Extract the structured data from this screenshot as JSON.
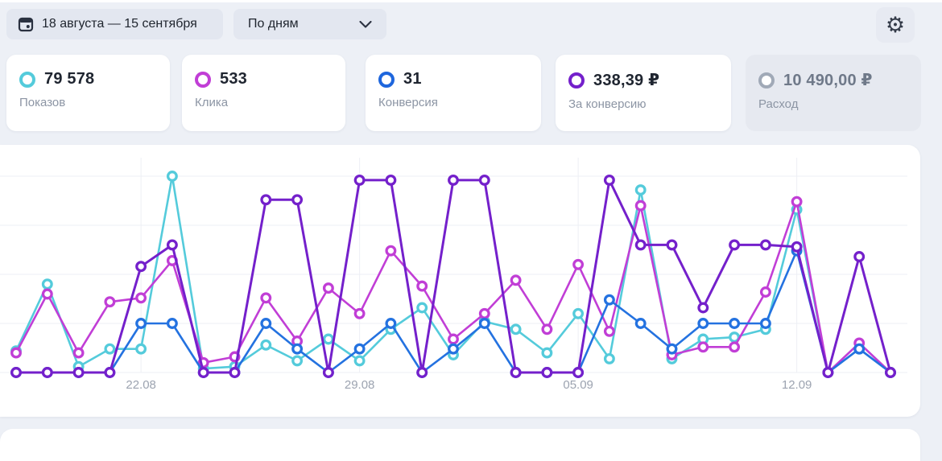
{
  "toolbar": {
    "date_range_label": "18 августа — 15 сентября",
    "granularity_value": "По дням",
    "calendar_icon": "calendar-icon",
    "chevron_icon": "chevron-down-icon",
    "settings_icon": "gear-icon"
  },
  "metrics": [
    {
      "key": "impressions",
      "value": "79 578",
      "label": "Показов",
      "color": "#54CBDB",
      "state": "active"
    },
    {
      "key": "clicks",
      "value": "533",
      "label": "Клика",
      "color": "#C13ED6",
      "state": "active"
    },
    {
      "key": "conversions",
      "value": "31",
      "label": "Конверсия",
      "color": "#1E66DD",
      "state": "active"
    },
    {
      "key": "cost_per_conversion",
      "value": "338,39 ₽",
      "label": "За конверсию",
      "color": "#7420CB",
      "state": "active"
    },
    {
      "key": "spend",
      "value": "10 490,00 ₽",
      "label": "Расход",
      "color": "#A0A9B7",
      "state": "disabled"
    }
  ],
  "chart_data": {
    "type": "line",
    "x": [
      "18.08",
      "19.08",
      "20.08",
      "21.08",
      "22.08",
      "23.08",
      "24.08",
      "25.08",
      "26.08",
      "27.08",
      "28.08",
      "29.08",
      "30.08",
      "31.08",
      "01.09",
      "02.09",
      "03.09",
      "04.09",
      "05.09",
      "06.09",
      "07.09",
      "08.09",
      "09.09",
      "10.09",
      "11.09",
      "12.09",
      "13.09",
      "14.09",
      "15.09"
    ],
    "x_tick_labels": [
      "22.08",
      "29.08",
      "05.09",
      "12.09"
    ],
    "ylim": [
      0,
      100
    ],
    "y_axis": "hidden — each series normalized to percent of plot height",
    "grid": true,
    "legend": "metric cards above act as legend",
    "series": [
      {
        "key": "impressions",
        "name": "Показы",
        "color": "#54CBDB",
        "values": [
          11,
          45,
          3,
          12,
          12,
          100,
          2,
          3,
          14,
          6,
          17,
          6,
          22,
          33,
          9,
          26,
          22,
          10,
          30,
          7,
          93,
          7,
          17,
          18,
          22,
          83,
          0,
          12,
          0
        ]
      },
      {
        "key": "clicks",
        "name": "Клики",
        "color": "#C13ED6",
        "values": [
          10,
          40,
          10,
          36,
          38,
          57,
          5,
          8,
          38,
          16,
          43,
          30,
          62,
          44,
          17,
          30,
          47,
          22,
          55,
          21,
          85,
          9,
          13,
          13,
          41,
          87,
          0,
          15,
          0
        ]
      },
      {
        "key": "conversions",
        "name": "Конверсии",
        "color": "#2472E0",
        "values": [
          0,
          0,
          0,
          0,
          25,
          25,
          0,
          0,
          25,
          12,
          0,
          12,
          25,
          0,
          12,
          25,
          0,
          0,
          0,
          37,
          25,
          12,
          25,
          25,
          25,
          62,
          0,
          12,
          0
        ],
        "counts": [
          0,
          0,
          0,
          0,
          2,
          2,
          0,
          0,
          2,
          1,
          0,
          1,
          2,
          0,
          1,
          2,
          0,
          0,
          0,
          3,
          2,
          1,
          2,
          2,
          2,
          5,
          0,
          1,
          0
        ]
      },
      {
        "key": "cost_per_conversion",
        "name": "За конверсию",
        "color": "#7420CB",
        "values": [
          0,
          0,
          0,
          0,
          54,
          65,
          0,
          0,
          88,
          88,
          0,
          98,
          98,
          0,
          98,
          98,
          0,
          0,
          0,
          98,
          65,
          65,
          33,
          65,
          65,
          64,
          0,
          59,
          0
        ]
      }
    ]
  },
  "colors": {
    "page_bg": "#EDF0F6",
    "pill_bg": "#E3E7F0",
    "card_bg": "#FFFFFF",
    "disabled_card_bg": "#E6E9F0",
    "value_text": "#1F2530",
    "label_text": "#8C95A4",
    "gridline": "#EDEFF4",
    "axis_label": "#9CA3B0"
  }
}
